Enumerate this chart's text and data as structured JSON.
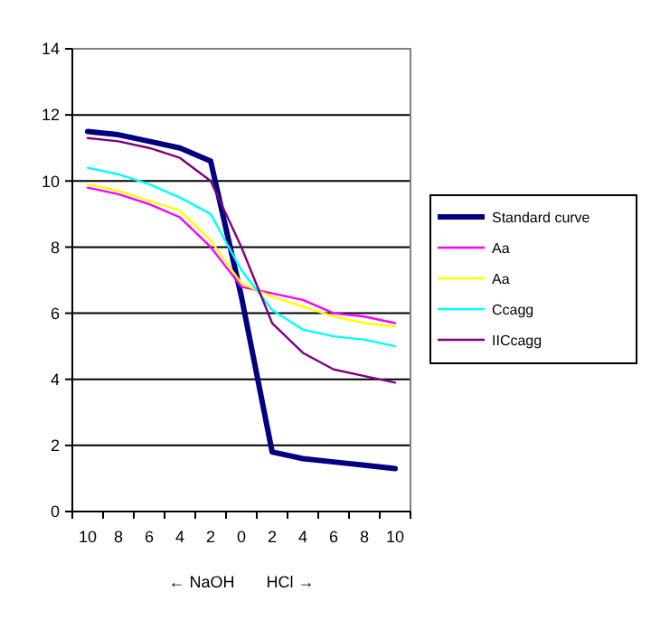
{
  "chart_data": {
    "type": "line",
    "xlabel": "← NaOH       HCl →",
    "categories": [
      "10",
      "8",
      "6",
      "4",
      "2",
      "0",
      "2",
      "4",
      "6",
      "8",
      "10"
    ],
    "ylim": [
      0,
      14
    ],
    "yticks": [
      0,
      2,
      4,
      6,
      8,
      10,
      12,
      14
    ],
    "grid": "y",
    "legend": "right",
    "marker": "none",
    "line_style": "solid",
    "series": [
      {
        "name": "Standard curve",
        "color": "#000080",
        "values": [
          11.5,
          11.4,
          11.2,
          11.0,
          10.6,
          6.5,
          1.8,
          1.6,
          1.5,
          1.4,
          1.3
        ]
      },
      {
        "name": "Aa",
        "color": "#ff00ff",
        "values": [
          9.8,
          9.6,
          9.3,
          8.9,
          8.0,
          6.8,
          6.6,
          6.4,
          6.0,
          5.9,
          5.7
        ]
      },
      {
        "name": "Aa",
        "color": "#ffff00",
        "values": [
          9.9,
          9.7,
          9.4,
          9.1,
          8.2,
          6.9,
          6.5,
          6.2,
          5.9,
          5.7,
          5.6
        ]
      },
      {
        "name": "Ccagg",
        "color": "#00ffff",
        "values": [
          10.4,
          10.2,
          9.9,
          9.5,
          9.0,
          7.3,
          6.1,
          5.5,
          5.3,
          5.2,
          5.0
        ]
      },
      {
        "name": "IICcagg",
        "color": "#800080",
        "values": [
          11.3,
          11.2,
          11.0,
          10.7,
          10.0,
          8.0,
          5.7,
          4.8,
          4.3,
          4.1,
          3.9
        ]
      }
    ]
  }
}
